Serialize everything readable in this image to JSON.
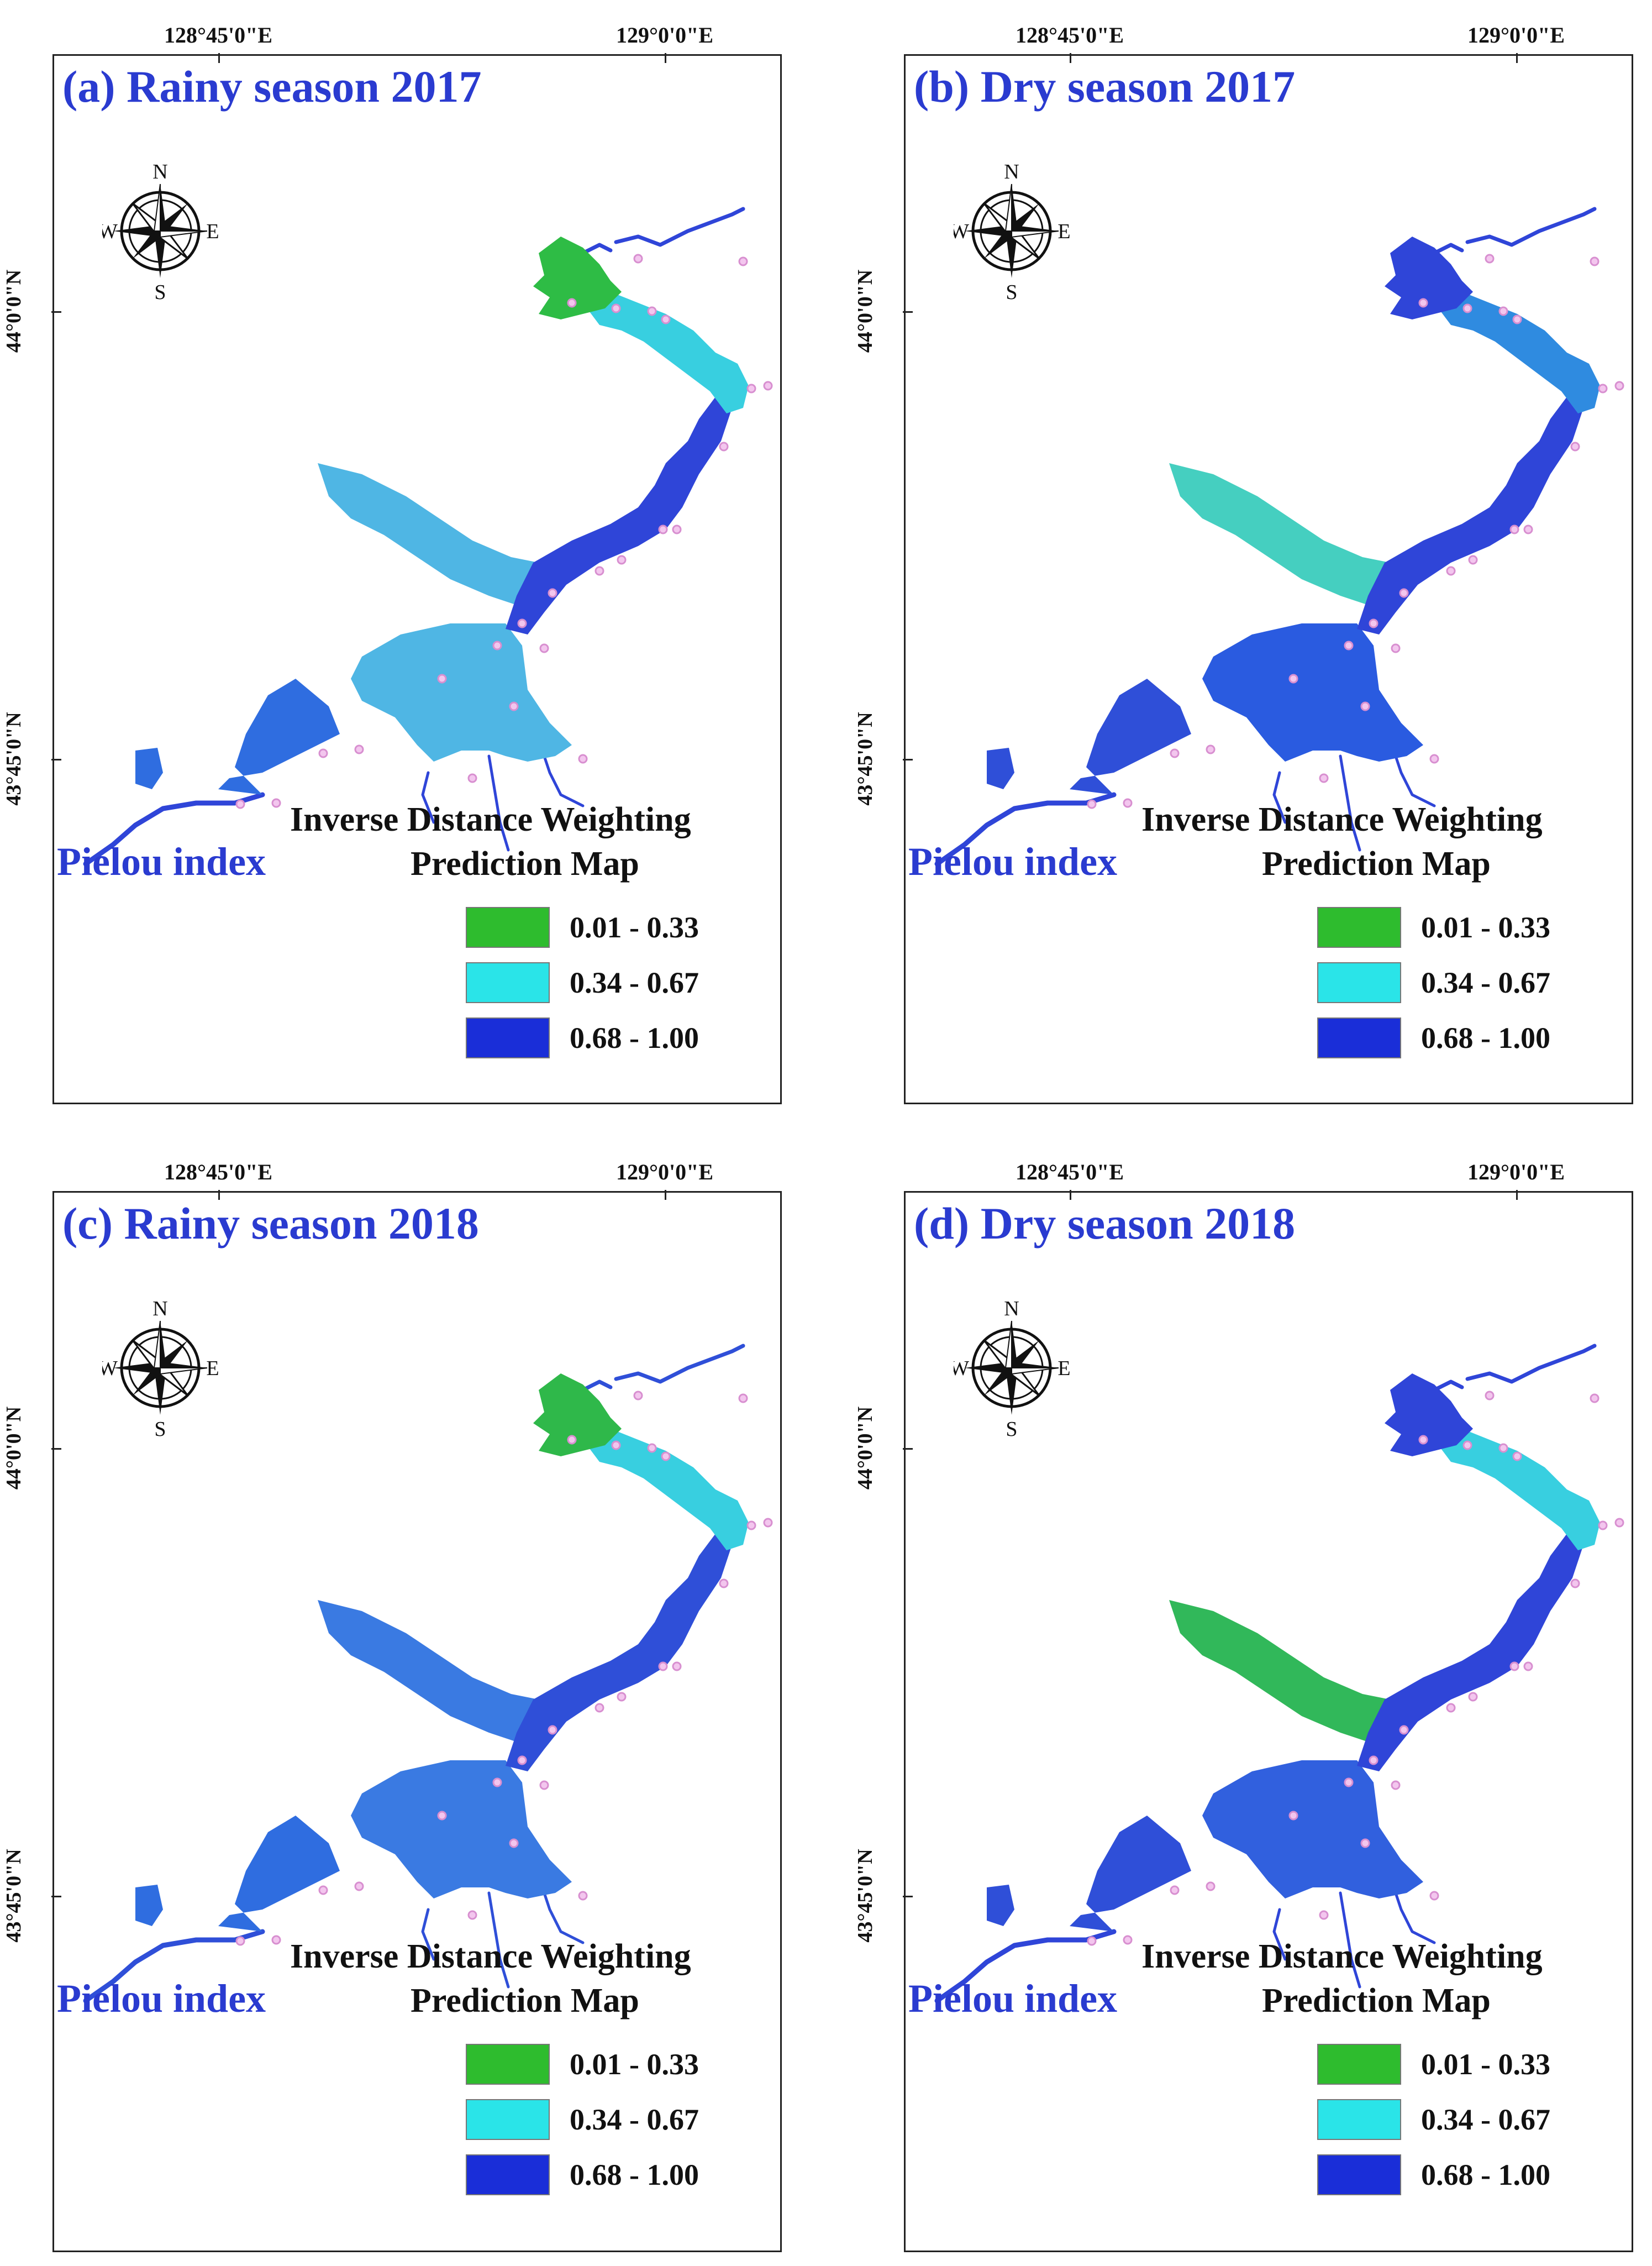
{
  "panels": [
    {
      "id": "a",
      "title": "(a) Rainy season 2017",
      "lon_ticks": [
        "128°45'0\"E",
        "129°0'0\"E"
      ],
      "lat_ticks": [
        "44°0'0\"N",
        "43°45'0\"N"
      ],
      "index_label": "Pielou index",
      "legend_title_1": "Inverse Distance Weighting",
      "legend_title_2": "Prediction Map",
      "zone_colors": [
        "#2f6de0",
        "#4fb6e4",
        "#4fb6e4",
        "#2f45d8",
        "#38cfe0",
        "#2ebc45"
      ]
    },
    {
      "id": "b",
      "title": "(b) Dry season 2017",
      "lon_ticks": [
        "128°45'0\"E",
        "129°0'0\"E"
      ],
      "lat_ticks": [
        "44°0'0\"N",
        "43°45'0\"N"
      ],
      "index_label": "Pielou index",
      "legend_title_1": "Inverse Distance Weighting",
      "legend_title_2": "Prediction Map",
      "zone_colors": [
        "#2f4fd8",
        "#2a5be0",
        "#45cfc0",
        "#2f45d8",
        "#2f8be0",
        "#2f45d8"
      ]
    },
    {
      "id": "c",
      "title": "(c) Rainy season 2018",
      "lon_ticks": [
        "128°45'0\"E",
        "129°0'0\"E"
      ],
      "lat_ticks": [
        "44°0'0\"N",
        "43°45'0\"N"
      ],
      "index_label": "Pielou index",
      "legend_title_1": "Inverse Distance Weighting",
      "legend_title_2": "Prediction Map",
      "zone_colors": [
        "#2f6de0",
        "#3a7ae2",
        "#3a7ae2",
        "#2f4fd8",
        "#38cfe0",
        "#2fb84a"
      ]
    },
    {
      "id": "d",
      "title": "(d) Dry season 2018",
      "lon_ticks": [
        "128°45'0\"E",
        "129°0'0\"E"
      ],
      "lat_ticks": [
        "44°0'0\"N",
        "43°45'0\"N"
      ],
      "index_label": "Pielou index",
      "legend_title_1": "Inverse Distance Weighting",
      "legend_title_2": "Prediction Map",
      "zone_colors": [
        "#2f4fd8",
        "#3160de",
        "#31b85a",
        "#2f45d8",
        "#38cfe0",
        "#2f45d8"
      ]
    }
  ],
  "legend": [
    {
      "range": "0.01 - 0.33",
      "color": "#2ebc2e"
    },
    {
      "range": "0.34 - 0.67",
      "color": "#2ae4e8"
    },
    {
      "range": "0.68 - 1.00",
      "color": "#1a2ed8"
    }
  ],
  "compass": {
    "n": "N",
    "s": "S",
    "e": "E",
    "w": "W"
  }
}
